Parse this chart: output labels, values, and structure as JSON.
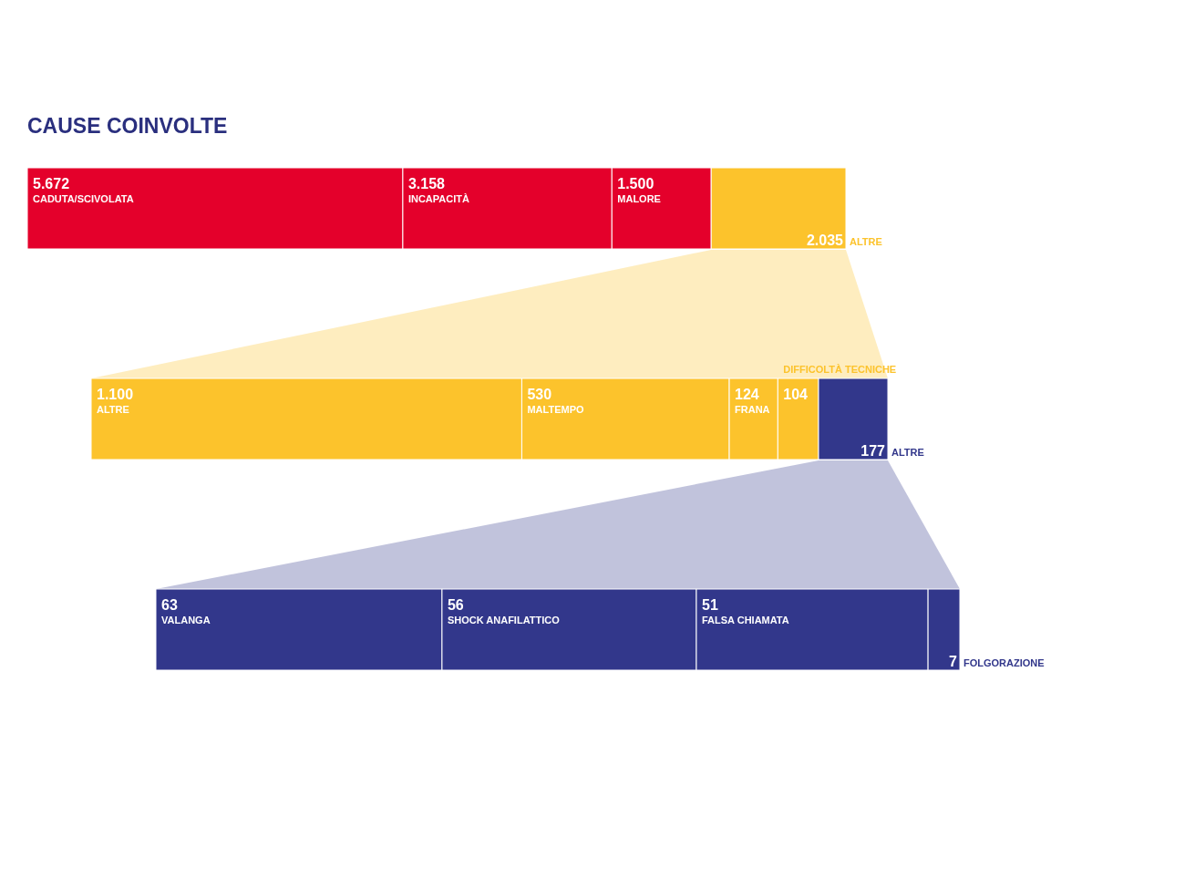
{
  "chart_data": [
    {
      "type": "bar",
      "orientation": "horizontal",
      "stacked": true,
      "title": "CAUSE COINVOLTE",
      "categories": [
        null
      ],
      "series": [
        {
          "name": "CADUTA/SCIVOLATA",
          "color": "#e4002b",
          "values": [
            5672
          ],
          "value_labels": [
            "5.672"
          ]
        },
        {
          "name": "INCAPACITÀ",
          "color": "#e4002b",
          "values": [
            3158
          ],
          "value_labels": [
            "3.158"
          ]
        },
        {
          "name": "MALORE",
          "color": "#e4002b",
          "values": [
            1500
          ],
          "value_labels": [
            "1.500"
          ]
        },
        {
          "name": "ALTRE",
          "color": "#fcc32c",
          "values": [
            2035
          ],
          "value_labels": [
            "2.035"
          ]
        }
      ]
    },
    {
      "type": "bar",
      "orientation": "horizontal",
      "stacked": true,
      "categories": [
        null
      ],
      "series": [
        {
          "name": "ALTRE",
          "color": "#fcc32c",
          "values": [
            1100
          ],
          "value_labels": [
            "1.100"
          ]
        },
        {
          "name": "MALTEMPO",
          "color": "#fcc32c",
          "values": [
            530
          ],
          "value_labels": [
            "530"
          ]
        },
        {
          "name": "FRANA",
          "color": "#fcc32c",
          "values": [
            124
          ],
          "value_labels": [
            "124"
          ]
        },
        {
          "name": "DIFFICOLTÀ TECNICHE",
          "color": "#fcc32c",
          "values": [
            104
          ],
          "value_labels": [
            "104"
          ]
        },
        {
          "name": "ALTRE",
          "color": "#32378b",
          "values": [
            177
          ],
          "value_labels": [
            "177"
          ]
        }
      ]
    },
    {
      "type": "bar",
      "orientation": "horizontal",
      "stacked": true,
      "data_labels": true,
      "categories": [
        null
      ],
      "series": [
        {
          "name": "VALANGA",
          "color": "#32378b",
          "values": [
            63
          ]
        },
        {
          "name": "SHOCK ANAFILATTICO",
          "color": "#32378b",
          "values": [
            56
          ]
        },
        {
          "name": "FALSA CHIAMATA",
          "color": "#32378b",
          "values": [
            51
          ]
        },
        {
          "name": "FOLGORAZIONE",
          "color": "#32378b",
          "values": [
            7
          ]
        }
      ]
    }
  ]
}
